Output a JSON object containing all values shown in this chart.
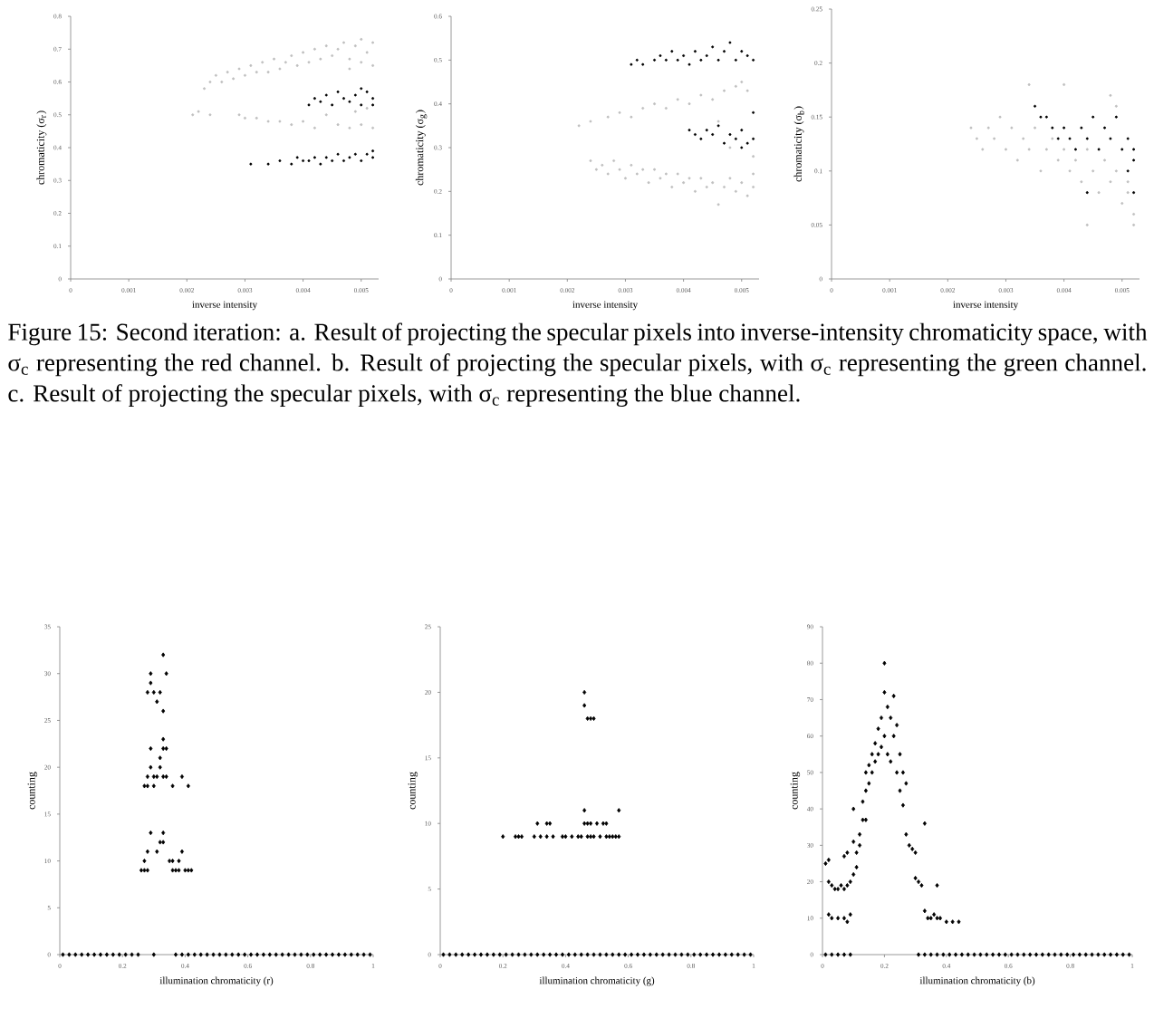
{
  "chart_data": [
    {
      "type": "scatter",
      "xlabel": "inverse intensity",
      "ylabel": "chromaticity (σ$_{r}$)",
      "xlim": [
        0,
        0.0053
      ],
      "ylim": [
        0,
        0.8
      ],
      "xticks": [
        0,
        0.001,
        0.002,
        0.003,
        0.004,
        0.005
      ],
      "yticks": [
        0,
        0.1,
        0.2,
        0.3,
        0.4,
        0.5,
        0.6,
        0.7,
        0.8
      ],
      "marker": "circle",
      "series": [
        {
          "color": "#bfbfbf",
          "x": [
            0.0023,
            0.0024,
            0.0025,
            0.0026,
            0.0027,
            0.0028,
            0.0029,
            0.003,
            0.0031,
            0.0032,
            0.0033,
            0.0034,
            0.0035,
            0.0036,
            0.0037,
            0.0038,
            0.0039,
            0.004,
            0.0041,
            0.0042,
            0.0043,
            0.0044,
            0.0045,
            0.0046,
            0.0047,
            0.0048,
            0.0049,
            0.005,
            0.0051,
            0.0052,
            0.0052,
            0.005,
            0.0048,
            0.0021,
            0.0022,
            0.0024,
            0.0029,
            0.003,
            0.0032,
            0.0034,
            0.0036,
            0.0038,
            0.004,
            0.0042,
            0.0044,
            0.0046,
            0.0048,
            0.005,
            0.0052,
            0.0049,
            0.0051
          ],
          "values": [
            0.58,
            0.6,
            0.62,
            0.6,
            0.63,
            0.61,
            0.64,
            0.62,
            0.65,
            0.63,
            0.66,
            0.63,
            0.67,
            0.64,
            0.66,
            0.68,
            0.65,
            0.69,
            0.66,
            0.7,
            0.67,
            0.71,
            0.68,
            0.7,
            0.72,
            0.67,
            0.71,
            0.73,
            0.69,
            0.72,
            0.65,
            0.66,
            0.64,
            0.5,
            0.51,
            0.5,
            0.5,
            0.49,
            0.49,
            0.48,
            0.48,
            0.47,
            0.48,
            0.46,
            0.5,
            0.47,
            0.46,
            0.47,
            0.46,
            0.51,
            0.52
          ]
        },
        {
          "color": "#000000",
          "x": [
            0.0041,
            0.0042,
            0.0043,
            0.0044,
            0.0045,
            0.0046,
            0.0047,
            0.0048,
            0.0049,
            0.005,
            0.0051,
            0.0052,
            0.0052,
            0.005,
            0.0031,
            0.0034,
            0.0036,
            0.0038,
            0.0039,
            0.004,
            0.0041,
            0.0042,
            0.0043,
            0.0044,
            0.0045,
            0.0046,
            0.0047,
            0.0048,
            0.0049,
            0.005,
            0.0051,
            0.0052,
            0.0052
          ],
          "values": [
            0.53,
            0.55,
            0.54,
            0.56,
            0.53,
            0.57,
            0.55,
            0.54,
            0.56,
            0.53,
            0.57,
            0.55,
            0.53,
            0.58,
            0.35,
            0.35,
            0.36,
            0.35,
            0.37,
            0.36,
            0.36,
            0.37,
            0.35,
            0.37,
            0.36,
            0.38,
            0.36,
            0.37,
            0.38,
            0.36,
            0.38,
            0.39,
            0.37
          ]
        }
      ]
    },
    {
      "type": "scatter",
      "xlabel": "inverse intensity",
      "ylabel": "chromaticity (σ$_{g}$)",
      "xlim": [
        0,
        0.0053
      ],
      "ylim": [
        0,
        0.6
      ],
      "xticks": [
        0,
        0.001,
        0.002,
        0.003,
        0.004,
        0.005
      ],
      "yticks": [
        0,
        0.1,
        0.2,
        0.3,
        0.4,
        0.5,
        0.6
      ],
      "marker": "circle",
      "series": [
        {
          "color": "#bfbfbf",
          "x": [
            0.0024,
            0.0025,
            0.0026,
            0.0027,
            0.0028,
            0.0029,
            0.003,
            0.0031,
            0.0032,
            0.0033,
            0.0034,
            0.0035,
            0.0036,
            0.0037,
            0.0038,
            0.0039,
            0.004,
            0.0041,
            0.0042,
            0.0043,
            0.0044,
            0.0045,
            0.0046,
            0.0047,
            0.0048,
            0.0049,
            0.005,
            0.0051,
            0.0052,
            0.0052,
            0.0022,
            0.0024,
            0.0027,
            0.0029,
            0.0031,
            0.0033,
            0.0035,
            0.0037,
            0.0039,
            0.0041,
            0.0043,
            0.0045,
            0.0047,
            0.0049,
            0.005,
            0.0051,
            0.0046,
            0.0048,
            0.0052
          ],
          "values": [
            0.27,
            0.25,
            0.26,
            0.24,
            0.27,
            0.25,
            0.23,
            0.26,
            0.24,
            0.25,
            0.22,
            0.25,
            0.23,
            0.24,
            0.21,
            0.24,
            0.22,
            0.23,
            0.2,
            0.23,
            0.21,
            0.22,
            0.17,
            0.21,
            0.23,
            0.2,
            0.22,
            0.19,
            0.21,
            0.24,
            0.35,
            0.36,
            0.37,
            0.38,
            0.37,
            0.39,
            0.4,
            0.39,
            0.41,
            0.4,
            0.42,
            0.41,
            0.43,
            0.44,
            0.45,
            0.43,
            0.36,
            0.3,
            0.28
          ]
        },
        {
          "color": "#000000",
          "x": [
            0.0031,
            0.0032,
            0.0033,
            0.0035,
            0.0036,
            0.0037,
            0.0038,
            0.0039,
            0.004,
            0.0041,
            0.0042,
            0.0043,
            0.0044,
            0.0045,
            0.0046,
            0.0047,
            0.0048,
            0.0049,
            0.005,
            0.0051,
            0.0052,
            0.0041,
            0.0042,
            0.0043,
            0.0044,
            0.0045,
            0.0046,
            0.0047,
            0.0048,
            0.0049,
            0.005,
            0.0051,
            0.0052,
            0.0052,
            0.005
          ],
          "values": [
            0.49,
            0.5,
            0.49,
            0.5,
            0.51,
            0.5,
            0.52,
            0.5,
            0.51,
            0.49,
            0.52,
            0.5,
            0.51,
            0.53,
            0.5,
            0.52,
            0.54,
            0.5,
            0.52,
            0.51,
            0.5,
            0.34,
            0.33,
            0.32,
            0.34,
            0.33,
            0.35,
            0.31,
            0.33,
            0.32,
            0.34,
            0.31,
            0.32,
            0.38,
            0.3
          ]
        }
      ]
    },
    {
      "type": "scatter",
      "xlabel": "inverse intensity",
      "ylabel": "chromaticity (σ$_{b}$)",
      "xlim": [
        0,
        0.0053
      ],
      "ylim": [
        0,
        0.25
      ],
      "xticks": [
        0,
        0.001,
        0.002,
        0.003,
        0.004,
        0.005
      ],
      "yticks": [
        0,
        0.05,
        0.1,
        0.15,
        0.2,
        0.25
      ],
      "marker": "circle",
      "series": [
        {
          "color": "#bfbfbf",
          "x": [
            0.0024,
            0.0025,
            0.0026,
            0.0027,
            0.0028,
            0.0029,
            0.003,
            0.0031,
            0.0032,
            0.0033,
            0.0034,
            0.0035,
            0.0036,
            0.0037,
            0.0038,
            0.0039,
            0.004,
            0.0041,
            0.0042,
            0.0043,
            0.0044,
            0.0045,
            0.0046,
            0.0047,
            0.0048,
            0.0049,
            0.005,
            0.0051,
            0.0052,
            0.0052,
            0.0051,
            0.0044,
            0.0034,
            0.004,
            0.0048,
            0.0049
          ],
          "values": [
            0.14,
            0.13,
            0.12,
            0.14,
            0.13,
            0.15,
            0.12,
            0.14,
            0.11,
            0.13,
            0.12,
            0.14,
            0.1,
            0.12,
            0.13,
            0.11,
            0.12,
            0.1,
            0.11,
            0.09,
            0.12,
            0.1,
            0.08,
            0.11,
            0.09,
            0.1,
            0.07,
            0.09,
            0.06,
            0.05,
            0.08,
            0.05,
            0.18,
            0.18,
            0.17,
            0.16
          ]
        },
        {
          "color": "#000000",
          "x": [
            0.0035,
            0.0036,
            0.0037,
            0.0038,
            0.0039,
            0.004,
            0.0041,
            0.0042,
            0.0043,
            0.0044,
            0.0045,
            0.0046,
            0.0047,
            0.0048,
            0.0049,
            0.005,
            0.0051,
            0.0052,
            0.0052,
            0.0051,
            0.0052,
            0.0044
          ],
          "values": [
            0.16,
            0.15,
            0.15,
            0.14,
            0.13,
            0.14,
            0.13,
            0.12,
            0.14,
            0.13,
            0.15,
            0.12,
            0.14,
            0.13,
            0.15,
            0.12,
            0.13,
            0.12,
            0.11,
            0.1,
            0.08,
            0.08
          ]
        }
      ]
    },
    {
      "type": "other",
      "annotations": [
        "Figure 15: Second iteration: a. Result of projecting the specular pixels into inverse-intensity chromaticity space, with σ$_{c}$ representing the red channel. b. Result of projecting the specular pixels, with σ$_{c}$ representing the green channel. c. Result of projecting the specular pixels, with σ$_{c}$ representing the blue channel."
      ]
    },
    {
      "type": "scatter",
      "xlabel": "illumination chromaticity (r)",
      "ylabel": "counting",
      "xlim": [
        0,
        1
      ],
      "ylim": [
        0,
        35
      ],
      "xticks": [
        0,
        0.2,
        0.4,
        0.6,
        0.8,
        1
      ],
      "yticks": [
        0,
        5,
        10,
        15,
        20,
        25,
        30,
        35
      ],
      "marker": "diamond",
      "series": [
        {
          "color": "#000000",
          "x": [
            0.26,
            0.27,
            0.28,
            0.27,
            0.28,
            0.29,
            0.27,
            0.28,
            0.29,
            0.3,
            0.28,
            0.29,
            0.31,
            0.3,
            0.28,
            0.29,
            0.29,
            0.3,
            0.31,
            0.32,
            0.31,
            0.32,
            0.33,
            0.33,
            0.32,
            0.32,
            0.33,
            0.33,
            0.33,
            0.34,
            0.34,
            0.33,
            0.34,
            0.33,
            0.35,
            0.36,
            0.36,
            0.37,
            0.38,
            0.38,
            0.39,
            0.4,
            0.41,
            0.42,
            0.39,
            0.41,
            0.36,
            0.01,
            0.03,
            0.05,
            0.07,
            0.09,
            0.11,
            0.13,
            0.15,
            0.17,
            0.19,
            0.21,
            0.23,
            0.25,
            0.3,
            0.37,
            0.39,
            0.41,
            0.43,
            0.45,
            0.47,
            0.49,
            0.51,
            0.53,
            0.55,
            0.57,
            0.59,
            0.61,
            0.63,
            0.65,
            0.67,
            0.69,
            0.71,
            0.73,
            0.75,
            0.77,
            0.79,
            0.81,
            0.83,
            0.85,
            0.87,
            0.89,
            0.91,
            0.93,
            0.95,
            0.97,
            0.99
          ],
          "values": [
            9,
            9,
            9,
            10,
            11,
            13,
            18,
            19,
            20,
            19,
            18,
            22,
            19,
            18,
            28,
            29,
            30,
            28,
            27,
            28,
            11,
            12,
            12,
            13,
            20,
            21,
            22,
            23,
            19,
            22,
            19,
            26,
            30,
            32,
            10,
            10,
            9,
            9,
            10,
            9,
            11,
            9,
            9,
            9,
            19,
            18,
            18,
            0,
            0,
            0,
            0,
            0,
            0,
            0,
            0,
            0,
            0,
            0,
            0,
            0,
            0,
            0,
            0,
            0,
            0,
            0,
            0,
            0,
            0,
            0,
            0,
            0,
            0,
            0,
            0,
            0,
            0,
            0,
            0,
            0,
            0,
            0,
            0,
            0,
            0,
            0,
            0,
            0,
            0,
            0,
            0,
            0,
            0
          ]
        }
      ]
    },
    {
      "type": "scatter",
      "xlabel": "illumination chromaticity (g)",
      "ylabel": "counting",
      "xlim": [
        0,
        1
      ],
      "ylim": [
        0,
        25
      ],
      "xticks": [
        0,
        0.2,
        0.4,
        0.6,
        0.8,
        1
      ],
      "yticks": [
        0,
        5,
        10,
        15,
        20,
        25
      ],
      "marker": "diamond",
      "series": [
        {
          "color": "#000000",
          "x": [
            0.2,
            0.24,
            0.25,
            0.26,
            0.3,
            0.31,
            0.32,
            0.34,
            0.34,
            0.35,
            0.36,
            0.39,
            0.4,
            0.42,
            0.44,
            0.45,
            0.46,
            0.46,
            0.47,
            0.47,
            0.48,
            0.48,
            0.49,
            0.5,
            0.51,
            0.52,
            0.53,
            0.53,
            0.54,
            0.55,
            0.56,
            0.57,
            0.57,
            0.46,
            0.46,
            0.47,
            0.48,
            0.49,
            0.01,
            0.03,
            0.05,
            0.07,
            0.09,
            0.11,
            0.13,
            0.15,
            0.17,
            0.19,
            0.21,
            0.23,
            0.25,
            0.27,
            0.29,
            0.31,
            0.33,
            0.35,
            0.37,
            0.39,
            0.41,
            0.43,
            0.45,
            0.47,
            0.49,
            0.51,
            0.53,
            0.55,
            0.57,
            0.59,
            0.61,
            0.63,
            0.65,
            0.67,
            0.69,
            0.71,
            0.73,
            0.75,
            0.77,
            0.79,
            0.81,
            0.83,
            0.85,
            0.87,
            0.89,
            0.91,
            0.93,
            0.95,
            0.97,
            0.99
          ],
          "values": [
            9,
            9,
            9,
            9,
            9,
            10,
            9,
            9,
            10,
            10,
            9,
            9,
            9,
            9,
            9,
            9,
            10,
            11,
            9,
            10,
            9,
            10,
            9,
            10,
            9,
            10,
            9,
            10,
            9,
            9,
            9,
            9,
            11,
            20,
            19,
            18,
            18,
            18,
            0,
            0,
            0,
            0,
            0,
            0,
            0,
            0,
            0,
            0,
            0,
            0,
            0,
            0,
            0,
            0,
            0,
            0,
            0,
            0,
            0,
            0,
            0,
            0,
            0,
            0,
            0,
            0,
            0,
            0,
            0,
            0,
            0,
            0,
            0,
            0,
            0,
            0,
            0,
            0,
            0,
            0,
            0,
            0,
            0,
            0,
            0,
            0,
            0,
            0
          ]
        }
      ]
    },
    {
      "type": "scatter",
      "xlabel": "illumination chromaticity (b)",
      "ylabel": "counting",
      "xlim": [
        0,
        1
      ],
      "ylim": [
        0,
        90
      ],
      "xticks": [
        0,
        0.2,
        0.4,
        0.6,
        0.8,
        1
      ],
      "yticks": [
        0,
        10,
        20,
        30,
        40,
        50,
        60,
        70,
        80,
        90
      ],
      "marker": "diamond",
      "series": [
        {
          "color": "#000000",
          "x": [
            0.01,
            0.02,
            0.02,
            0.03,
            0.04,
            0.05,
            0.06,
            0.07,
            0.08,
            0.09,
            0.1,
            0.11,
            0.11,
            0.12,
            0.12,
            0.13,
            0.13,
            0.14,
            0.14,
            0.15,
            0.15,
            0.16,
            0.16,
            0.17,
            0.17,
            0.18,
            0.18,
            0.19,
            0.19,
            0.2,
            0.2,
            0.2,
            0.21,
            0.21,
            0.22,
            0.22,
            0.23,
            0.23,
            0.24,
            0.24,
            0.25,
            0.25,
            0.26,
            0.26,
            0.27,
            0.27,
            0.28,
            0.29,
            0.3,
            0.3,
            0.31,
            0.32,
            0.33,
            0.33,
            0.34,
            0.35,
            0.36,
            0.37,
            0.38,
            0.4,
            0.42,
            0.44,
            0.02,
            0.03,
            0.05,
            0.07,
            0.08,
            0.09,
            0.1,
            0.1,
            0.08,
            0.07,
            0.14,
            0.37,
            0.01,
            0.03,
            0.05,
            0.07,
            0.09,
            0.31,
            0.33,
            0.35,
            0.37,
            0.39,
            0.41,
            0.43,
            0.45,
            0.47,
            0.49,
            0.51,
            0.53,
            0.55,
            0.57,
            0.59,
            0.61,
            0.63,
            0.65,
            0.67,
            0.69,
            0.71,
            0.73,
            0.75,
            0.77,
            0.79,
            0.81,
            0.83,
            0.85,
            0.87,
            0.89,
            0.91,
            0.93,
            0.95,
            0.97,
            0.99
          ],
          "values": [
            25,
            26,
            20,
            19,
            18,
            18,
            19,
            18,
            19,
            20,
            22,
            24,
            28,
            30,
            33,
            37,
            42,
            45,
            50,
            52,
            47,
            55,
            50,
            58,
            53,
            62,
            55,
            65,
            57,
            80,
            72,
            60,
            68,
            55,
            65,
            53,
            71,
            60,
            63,
            50,
            55,
            45,
            50,
            41,
            47,
            33,
            30,
            29,
            28,
            21,
            20,
            19,
            36,
            12,
            10,
            10,
            11,
            10,
            10,
            9,
            9,
            9,
            11,
            10,
            10,
            10,
            9,
            11,
            31,
            40,
            28,
            27,
            37,
            19,
            0,
            0,
            0,
            0,
            0,
            0,
            0,
            0,
            0,
            0,
            0,
            0,
            0,
            0,
            0,
            0,
            0,
            0,
            0,
            0,
            0,
            0,
            0,
            0,
            0,
            0,
            0,
            0,
            0,
            0,
            0,
            0,
            0,
            0,
            0,
            0,
            0,
            0,
            0,
            0
          ]
        }
      ]
    }
  ]
}
